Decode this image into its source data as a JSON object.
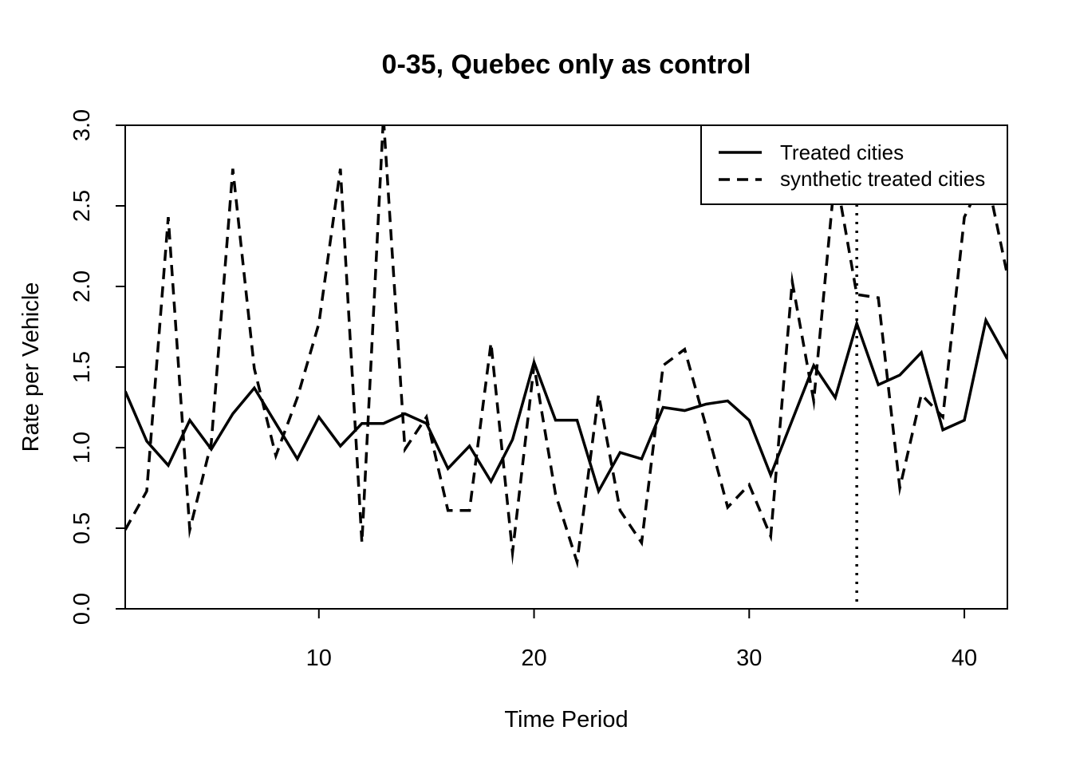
{
  "chart_data": {
    "type": "line",
    "title": "0-35, Quebec only as control",
    "xlabel": "Time Period",
    "ylabel": "Rate per Vehicle",
    "xlim": [
      1,
      42
    ],
    "ylim": [
      0,
      3
    ],
    "x_ticks": [
      10,
      20,
      30,
      40
    ],
    "y_ticks": [
      "0.0",
      "0.5",
      "1.0",
      "1.5",
      "2.0",
      "2.5",
      "3.0"
    ],
    "grid": false,
    "legend_position": "top-right",
    "x": [
      1,
      2,
      3,
      4,
      5,
      6,
      7,
      8,
      9,
      10,
      11,
      12,
      13,
      14,
      15,
      16,
      17,
      18,
      19,
      20,
      21,
      22,
      23,
      24,
      25,
      26,
      27,
      28,
      29,
      30,
      31,
      32,
      33,
      34,
      35,
      36,
      37,
      38,
      39,
      40,
      41,
      42
    ],
    "series": [
      {
        "name": "Treated cities",
        "line_style": "solid",
        "values": [
          1.35,
          1.04,
          0.89,
          1.17,
          0.99,
          1.21,
          1.37,
          1.15,
          0.93,
          1.19,
          1.01,
          1.15,
          1.15,
          1.21,
          1.15,
          0.87,
          1.01,
          0.79,
          1.05,
          1.53,
          1.17,
          1.17,
          0.73,
          0.97,
          0.93,
          1.25,
          1.23,
          1.27,
          1.29,
          1.17,
          0.83,
          1.17,
          1.51,
          1.31,
          1.77,
          1.39,
          1.45,
          1.59,
          1.11,
          1.17,
          1.79,
          1.55
        ]
      },
      {
        "name": "synthetic treated cities",
        "line_style": "dashed",
        "values": [
          0.49,
          0.73,
          2.43,
          0.49,
          1.03,
          2.73,
          1.49,
          0.95,
          1.31,
          1.77,
          2.73,
          0.41,
          3.05,
          0.99,
          1.19,
          0.61,
          0.61,
          1.65,
          0.35,
          1.51,
          0.71,
          0.29,
          1.33,
          0.61,
          0.41,
          1.51,
          1.61,
          1.13,
          0.63,
          0.77,
          0.45,
          2.03,
          1.29,
          2.71,
          1.95,
          1.93,
          0.75,
          1.33,
          1.19,
          2.43,
          2.71,
          2.07
        ]
      }
    ],
    "reference_line": {
      "x": 35,
      "style": "dotted"
    }
  }
}
